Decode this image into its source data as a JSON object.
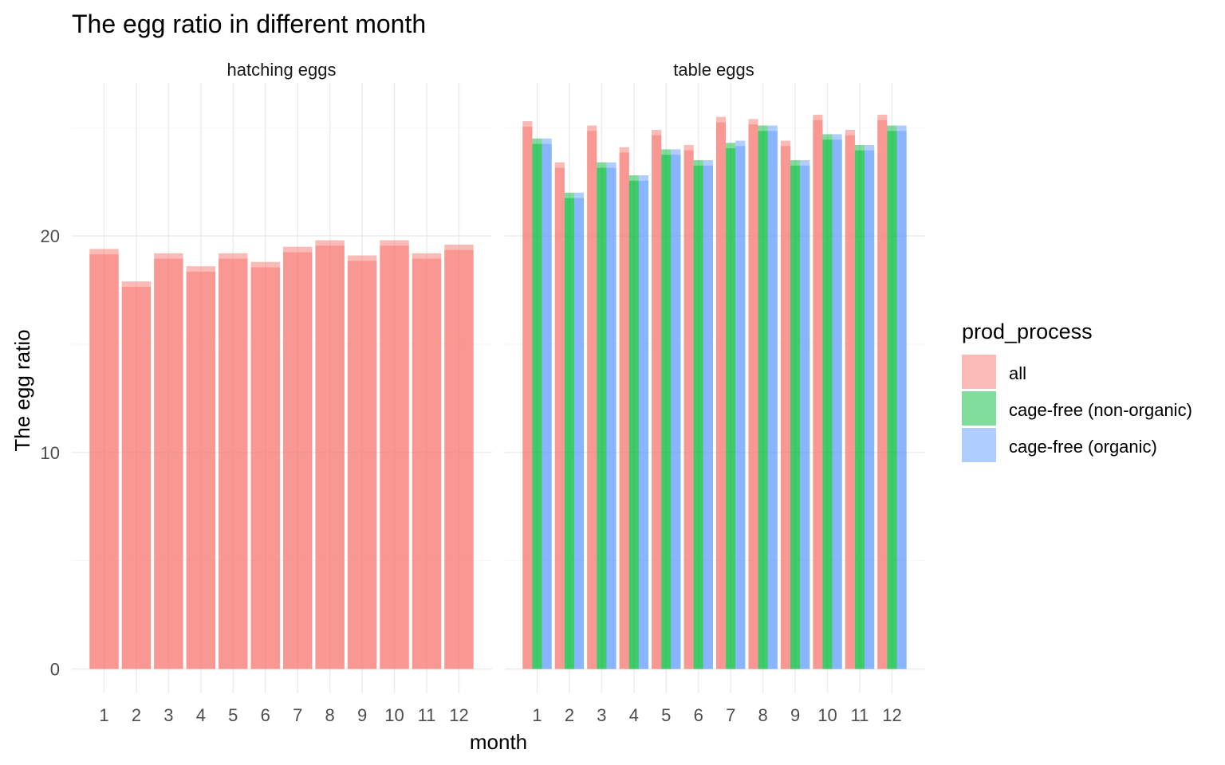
{
  "chart_data": {
    "type": "bar",
    "title": "The egg ratio in different month",
    "xlabel": "month",
    "ylabel": "The egg ratio",
    "ylim": [
      0,
      25.5
    ],
    "yticks": [
      0,
      10,
      20
    ],
    "categories": [
      "1",
      "2",
      "3",
      "4",
      "5",
      "6",
      "7",
      "8",
      "9",
      "10",
      "11",
      "12"
    ],
    "legend": {
      "title": "prod_process",
      "placement": "right",
      "entries": [
        {
          "label": "all",
          "color": "#F8766D"
        },
        {
          "label": "cage-free (non-organic)",
          "color": "#00BA38"
        },
        {
          "label": "cage-free (organic)",
          "color": "#619CFF"
        }
      ]
    },
    "facets": [
      {
        "label": "hatching eggs",
        "series": [
          {
            "name": "all",
            "values": [
              19.4,
              17.9,
              19.2,
              18.6,
              19.2,
              18.8,
              19.5,
              19.8,
              19.1,
              19.8,
              19.2,
              19.6
            ]
          }
        ]
      },
      {
        "label": "table eggs",
        "series": [
          {
            "name": "all",
            "values": [
              25.3,
              23.4,
              25.1,
              24.1,
              24.9,
              24.2,
              25.5,
              25.4,
              24.4,
              25.6,
              24.9,
              25.6
            ]
          },
          {
            "name": "cage-free (non-organic)",
            "values": [
              24.5,
              22.0,
              23.4,
              22.8,
              24.0,
              23.5,
              24.3,
              25.1,
              23.5,
              24.7,
              24.2,
              25.1
            ]
          },
          {
            "name": "cage-free (organic)",
            "values": [
              24.5,
              22.0,
              23.4,
              22.8,
              24.0,
              23.5,
              24.4,
              25.1,
              23.5,
              24.7,
              24.2,
              25.1
            ]
          }
        ]
      }
    ]
  }
}
